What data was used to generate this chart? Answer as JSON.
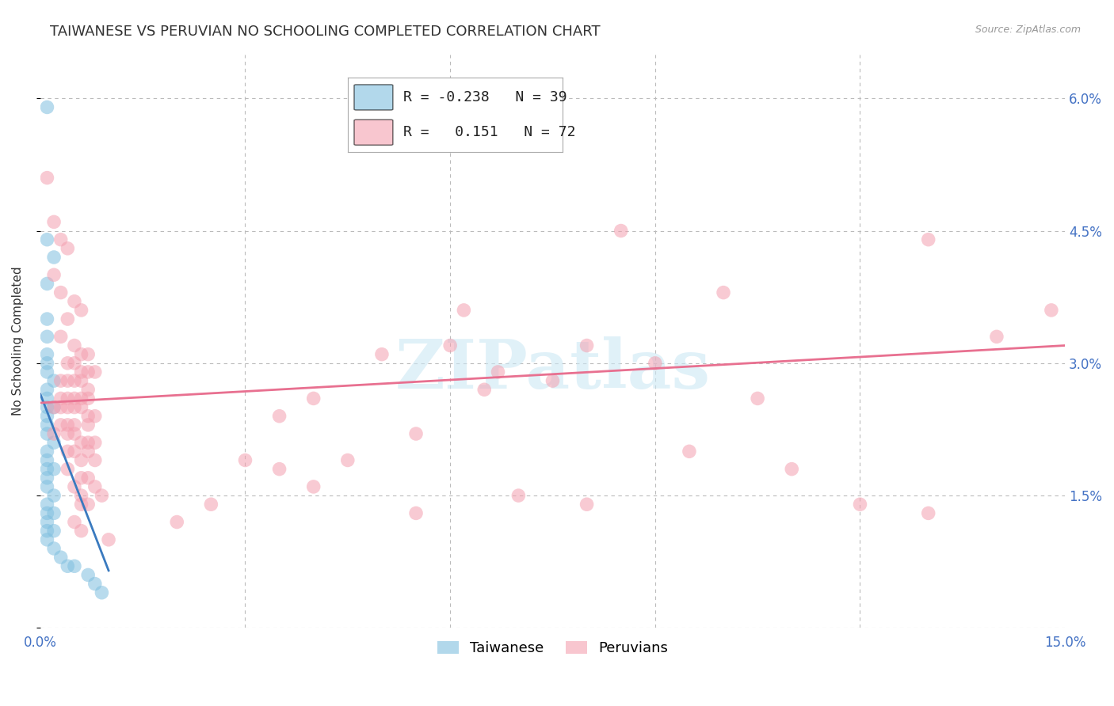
{
  "title": "TAIWANESE VS PERUVIAN NO SCHOOLING COMPLETED CORRELATION CHART",
  "source": "Source: ZipAtlas.com",
  "ylabel": "No Schooling Completed",
  "xlim": [
    0.0,
    0.15
  ],
  "ylim": [
    0.0,
    0.065
  ],
  "xticks": [
    0.0,
    0.03,
    0.06,
    0.09,
    0.12,
    0.15
  ],
  "xticklabels": [
    "0.0%",
    "",
    "",
    "",
    "",
    "15.0%"
  ],
  "yticks_right": [
    0.0,
    0.015,
    0.03,
    0.045,
    0.06
  ],
  "yticklabels_right": [
    "",
    "1.5%",
    "3.0%",
    "4.5%",
    "6.0%"
  ],
  "taiwanese_color": "#7fbfdf",
  "peruvian_color": "#f4a0b0",
  "trend_taiwanese_color": "#3a7abf",
  "trend_peruvian_color": "#e87090",
  "background_color": "#ffffff",
  "grid_color": "#bbbbbb",
  "watermark": "ZIPatlas",
  "title_fontsize": 13,
  "axis_label_fontsize": 11,
  "tick_fontsize": 12,
  "legend_fontsize": 13,
  "taiwanese_points": [
    [
      0.001,
      0.059
    ],
    [
      0.001,
      0.044
    ],
    [
      0.002,
      0.042
    ],
    [
      0.001,
      0.039
    ],
    [
      0.001,
      0.035
    ],
    [
      0.001,
      0.033
    ],
    [
      0.001,
      0.031
    ],
    [
      0.001,
      0.03
    ],
    [
      0.001,
      0.029
    ],
    [
      0.002,
      0.028
    ],
    [
      0.001,
      0.027
    ],
    [
      0.001,
      0.026
    ],
    [
      0.001,
      0.025
    ],
    [
      0.002,
      0.025
    ],
    [
      0.001,
      0.024
    ],
    [
      0.001,
      0.023
    ],
    [
      0.001,
      0.022
    ],
    [
      0.002,
      0.021
    ],
    [
      0.001,
      0.02
    ],
    [
      0.001,
      0.019
    ],
    [
      0.001,
      0.018
    ],
    [
      0.002,
      0.018
    ],
    [
      0.001,
      0.017
    ],
    [
      0.001,
      0.016
    ],
    [
      0.002,
      0.015
    ],
    [
      0.001,
      0.014
    ],
    [
      0.001,
      0.013
    ],
    [
      0.002,
      0.013
    ],
    [
      0.001,
      0.012
    ],
    [
      0.001,
      0.011
    ],
    [
      0.002,
      0.011
    ],
    [
      0.001,
      0.01
    ],
    [
      0.002,
      0.009
    ],
    [
      0.003,
      0.008
    ],
    [
      0.004,
      0.007
    ],
    [
      0.005,
      0.007
    ],
    [
      0.007,
      0.006
    ],
    [
      0.008,
      0.005
    ],
    [
      0.009,
      0.004
    ]
  ],
  "peruvian_points": [
    [
      0.001,
      0.051
    ],
    [
      0.002,
      0.046
    ],
    [
      0.003,
      0.044
    ],
    [
      0.004,
      0.043
    ],
    [
      0.002,
      0.04
    ],
    [
      0.003,
      0.038
    ],
    [
      0.005,
      0.037
    ],
    [
      0.006,
      0.036
    ],
    [
      0.004,
      0.035
    ],
    [
      0.003,
      0.033
    ],
    [
      0.005,
      0.032
    ],
    [
      0.006,
      0.031
    ],
    [
      0.007,
      0.031
    ],
    [
      0.004,
      0.03
    ],
    [
      0.005,
      0.03
    ],
    [
      0.006,
      0.029
    ],
    [
      0.007,
      0.029
    ],
    [
      0.008,
      0.029
    ],
    [
      0.003,
      0.028
    ],
    [
      0.004,
      0.028
    ],
    [
      0.005,
      0.028
    ],
    [
      0.006,
      0.028
    ],
    [
      0.007,
      0.027
    ],
    [
      0.003,
      0.026
    ],
    [
      0.004,
      0.026
    ],
    [
      0.005,
      0.026
    ],
    [
      0.006,
      0.026
    ],
    [
      0.007,
      0.026
    ],
    [
      0.002,
      0.025
    ],
    [
      0.003,
      0.025
    ],
    [
      0.004,
      0.025
    ],
    [
      0.005,
      0.025
    ],
    [
      0.006,
      0.025
    ],
    [
      0.007,
      0.024
    ],
    [
      0.008,
      0.024
    ],
    [
      0.003,
      0.023
    ],
    [
      0.004,
      0.023
    ],
    [
      0.005,
      0.023
    ],
    [
      0.007,
      0.023
    ],
    [
      0.002,
      0.022
    ],
    [
      0.004,
      0.022
    ],
    [
      0.005,
      0.022
    ],
    [
      0.006,
      0.021
    ],
    [
      0.007,
      0.021
    ],
    [
      0.008,
      0.021
    ],
    [
      0.004,
      0.02
    ],
    [
      0.005,
      0.02
    ],
    [
      0.007,
      0.02
    ],
    [
      0.006,
      0.019
    ],
    [
      0.008,
      0.019
    ],
    [
      0.004,
      0.018
    ],
    [
      0.006,
      0.017
    ],
    [
      0.007,
      0.017
    ],
    [
      0.005,
      0.016
    ],
    [
      0.008,
      0.016
    ],
    [
      0.006,
      0.015
    ],
    [
      0.009,
      0.015
    ],
    [
      0.006,
      0.014
    ],
    [
      0.007,
      0.014
    ],
    [
      0.05,
      0.031
    ],
    [
      0.06,
      0.032
    ],
    [
      0.062,
      0.036
    ],
    [
      0.065,
      0.027
    ],
    [
      0.067,
      0.029
    ],
    [
      0.075,
      0.028
    ],
    [
      0.08,
      0.032
    ],
    [
      0.085,
      0.045
    ],
    [
      0.09,
      0.03
    ],
    [
      0.095,
      0.02
    ],
    [
      0.105,
      0.026
    ],
    [
      0.11,
      0.018
    ],
    [
      0.13,
      0.044
    ],
    [
      0.14,
      0.033
    ],
    [
      0.148,
      0.036
    ],
    [
      0.005,
      0.012
    ],
    [
      0.006,
      0.011
    ],
    [
      0.035,
      0.018
    ],
    [
      0.04,
      0.016
    ],
    [
      0.04,
      0.026
    ],
    [
      0.045,
      0.019
    ],
    [
      0.055,
      0.022
    ],
    [
      0.01,
      0.01
    ],
    [
      0.02,
      0.012
    ],
    [
      0.025,
      0.014
    ],
    [
      0.03,
      0.019
    ],
    [
      0.035,
      0.024
    ],
    [
      0.055,
      0.013
    ],
    [
      0.07,
      0.015
    ],
    [
      0.08,
      0.014
    ],
    [
      0.1,
      0.038
    ],
    [
      0.12,
      0.014
    ],
    [
      0.13,
      0.013
    ]
  ],
  "taiwanese_trend_x": [
    0.0,
    0.01
  ],
  "taiwanese_trend_y": [
    0.0265,
    0.0065
  ],
  "peruvian_trend_x": [
    0.0,
    0.15
  ],
  "peruvian_trend_y": [
    0.0255,
    0.032
  ]
}
